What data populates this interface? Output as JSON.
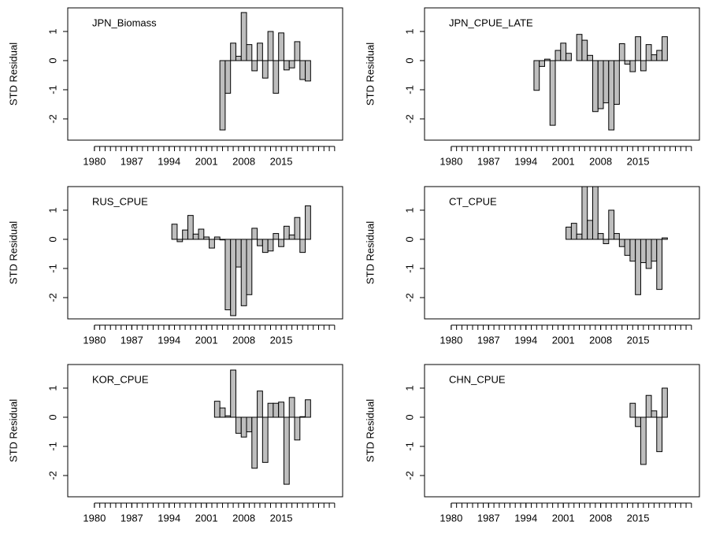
{
  "chart_data": [
    {
      "type": "bar",
      "title": "JPN_Biomass",
      "ylabel": "STD Residual",
      "color": "#bebebe",
      "x": [
        2004,
        2005,
        2006,
        2007,
        2008,
        2009,
        2010,
        2011,
        2012,
        2013,
        2014,
        2015,
        2016,
        2017,
        2018,
        2019,
        2020
      ],
      "values": [
        -2.38,
        -1.12,
        0.6,
        0.15,
        1.65,
        0.55,
        -0.35,
        0.6,
        -0.6,
        1.0,
        -1.12,
        0.95,
        -0.32,
        -0.25,
        0.65,
        -0.65,
        -0.7
      ],
      "xlim": [
        1975,
        2026.5
      ],
      "xticks": [
        1980,
        1987,
        1994,
        2001,
        2008,
        2015
      ],
      "xminorticks": [
        1980,
        1981,
        1982,
        1983,
        1984,
        1985,
        1986,
        1987,
        1988,
        1989,
        1990,
        1991,
        1992,
        1993,
        1994,
        1995,
        1996,
        1997,
        1998,
        1999,
        2000,
        2001,
        2002,
        2003,
        2004,
        2005,
        2006,
        2007,
        2008,
        2009,
        2010,
        2011,
        2012,
        2013,
        2014,
        2015,
        2016,
        2017,
        2018,
        2019,
        2020,
        2021,
        2022,
        2023,
        2024,
        2025
      ],
      "ylim": [
        -2.73,
        1.81
      ],
      "yticks": [
        -2,
        -1,
        0,
        1
      ]
    },
    {
      "type": "bar",
      "title": "JPN_CPUE_LATE",
      "ylabel": "STD Residual",
      "color": "#bebebe",
      "x": [
        1996,
        1997,
        1998,
        1999,
        2000,
        2001,
        2002,
        2003,
        2004,
        2005,
        2006,
        2007,
        2008,
        2009,
        2010,
        2011,
        2012,
        2013,
        2014,
        2015,
        2016,
        2017,
        2018,
        2019,
        2020
      ],
      "values": [
        -1.02,
        -0.2,
        0.05,
        -2.22,
        0.35,
        0.6,
        0.25,
        0.0,
        0.9,
        0.7,
        0.18,
        -1.75,
        -1.65,
        -1.45,
        -2.38,
        -1.5,
        0.58,
        -0.12,
        -0.38,
        0.82,
        -0.35,
        0.55,
        0.2,
        0.35,
        0.82
      ],
      "xlim": [
        1975,
        2026.5
      ],
      "xticks": [
        1980,
        1987,
        1994,
        2001,
        2008,
        2015
      ],
      "xminorticks": [
        1980,
        1981,
        1982,
        1983,
        1984,
        1985,
        1986,
        1987,
        1988,
        1989,
        1990,
        1991,
        1992,
        1993,
        1994,
        1995,
        1996,
        1997,
        1998,
        1999,
        2000,
        2001,
        2002,
        2003,
        2004,
        2005,
        2006,
        2007,
        2008,
        2009,
        2010,
        2011,
        2012,
        2013,
        2014,
        2015,
        2016,
        2017,
        2018,
        2019,
        2020,
        2021,
        2022,
        2023,
        2024,
        2025
      ],
      "ylim": [
        -2.73,
        1.81
      ],
      "yticks": [
        -2,
        -1,
        0,
        1
      ]
    },
    {
      "type": "bar",
      "title": "RUS_CPUE",
      "ylabel": "STD Residual",
      "color": "#bebebe",
      "x": [
        1995,
        1996,
        1997,
        1998,
        1999,
        2000,
        2001,
        2002,
        2003,
        2004,
        2005,
        2006,
        2007,
        2008,
        2009,
        2010,
        2011,
        2012,
        2013,
        2014,
        2015,
        2016,
        2017,
        2018,
        2019,
        2020
      ],
      "values": [
        0.52,
        -0.08,
        0.32,
        0.82,
        0.18,
        0.35,
        0.08,
        -0.3,
        0.08,
        -0.02,
        -2.42,
        -2.62,
        -0.95,
        -2.28,
        -1.9,
        0.38,
        -0.22,
        -0.45,
        -0.4,
        0.2,
        -0.25,
        0.45,
        0.15,
        0.75,
        -0.45,
        1.15
      ],
      "xlim": [
        1975,
        2026.5
      ],
      "xticks": [
        1980,
        1987,
        1994,
        2001,
        2008,
        2015
      ],
      "xminorticks": [
        1980,
        1981,
        1982,
        1983,
        1984,
        1985,
        1986,
        1987,
        1988,
        1989,
        1990,
        1991,
        1992,
        1993,
        1994,
        1995,
        1996,
        1997,
        1998,
        1999,
        2000,
        2001,
        2002,
        2003,
        2004,
        2005,
        2006,
        2007,
        2008,
        2009,
        2010,
        2011,
        2012,
        2013,
        2014,
        2015,
        2016,
        2017,
        2018,
        2019,
        2020,
        2021,
        2022,
        2023,
        2024,
        2025
      ],
      "ylim": [
        -2.73,
        1.81
      ],
      "yticks": [
        -2,
        -1,
        0,
        1
      ]
    },
    {
      "type": "bar",
      "title": "CT_CPUE",
      "ylabel": "STD Residual",
      "color": "#bebebe",
      "x": [
        2002,
        2003,
        2004,
        2005,
        2006,
        2007,
        2008,
        2009,
        2010,
        2011,
        2012,
        2013,
        2014,
        2015,
        2016,
        2017,
        2018,
        2019,
        2020
      ],
      "values": [
        0.42,
        0.55,
        0.18,
        2.2,
        0.65,
        2.0,
        0.2,
        -0.15,
        1.0,
        0.2,
        -0.25,
        -0.55,
        -0.75,
        -1.9,
        -0.8,
        -1.0,
        -0.75,
        -1.72,
        0.05
      ],
      "xlim": [
        1975,
        2026.5
      ],
      "xticks": [
        1980,
        1987,
        1994,
        2001,
        2008,
        2015
      ],
      "xminorticks": [
        1980,
        1981,
        1982,
        1983,
        1984,
        1985,
        1986,
        1987,
        1988,
        1989,
        1990,
        1991,
        1992,
        1993,
        1994,
        1995,
        1996,
        1997,
        1998,
        1999,
        2000,
        2001,
        2002,
        2003,
        2004,
        2005,
        2006,
        2007,
        2008,
        2009,
        2010,
        2011,
        2012,
        2013,
        2014,
        2015,
        2016,
        2017,
        2018,
        2019,
        2020,
        2021,
        2022,
        2023,
        2024,
        2025
      ],
      "ylim": [
        -2.73,
        1.81
      ],
      "yticks": [
        -2,
        -1,
        0,
        1
      ]
    },
    {
      "type": "bar",
      "title": "KOR_CPUE",
      "ylabel": "STD Residual",
      "color": "#bebebe",
      "x": [
        2003,
        2004,
        2005,
        2006,
        2007,
        2008,
        2009,
        2010,
        2011,
        2012,
        2013,
        2014,
        2015,
        2016,
        2017,
        2018,
        2019,
        2020
      ],
      "values": [
        0.55,
        0.32,
        0.05,
        1.62,
        -0.55,
        -0.68,
        -0.5,
        -1.75,
        0.9,
        -1.55,
        0.48,
        0.48,
        0.52,
        -2.3,
        0.68,
        -0.78,
        0.02,
        0.6
      ],
      "xlim": [
        1975,
        2026.5
      ],
      "xticks": [
        1980,
        1987,
        1994,
        2001,
        2008,
        2015
      ],
      "xminorticks": [
        1980,
        1981,
        1982,
        1983,
        1984,
        1985,
        1986,
        1987,
        1988,
        1989,
        1990,
        1991,
        1992,
        1993,
        1994,
        1995,
        1996,
        1997,
        1998,
        1999,
        2000,
        2001,
        2002,
        2003,
        2004,
        2005,
        2006,
        2007,
        2008,
        2009,
        2010,
        2011,
        2012,
        2013,
        2014,
        2015,
        2016,
        2017,
        2018,
        2019,
        2020,
        2021,
        2022,
        2023,
        2024,
        2025
      ],
      "ylim": [
        -2.73,
        1.81
      ],
      "yticks": [
        -2,
        -1,
        0,
        1
      ]
    },
    {
      "type": "bar",
      "title": "CHN_CPUE",
      "ylabel": "STD Residual",
      "color": "#bebebe",
      "x": [
        2014,
        2015,
        2016,
        2017,
        2018,
        2019,
        2020
      ],
      "values": [
        0.48,
        -0.32,
        -1.62,
        0.75,
        0.22,
        -1.18,
        1.0
      ],
      "xlim": [
        1975,
        2026.5
      ],
      "xticks": [
        1980,
        1987,
        1994,
        2001,
        2008,
        2015
      ],
      "xminorticks": [
        1980,
        1981,
        1982,
        1983,
        1984,
        1985,
        1986,
        1987,
        1988,
        1989,
        1990,
        1991,
        1992,
        1993,
        1994,
        1995,
        1996,
        1997,
        1998,
        1999,
        2000,
        2001,
        2002,
        2003,
        2004,
        2005,
        2006,
        2007,
        2008,
        2009,
        2010,
        2011,
        2012,
        2013,
        2014,
        2015,
        2016,
        2017,
        2018,
        2019,
        2020,
        2021,
        2022,
        2023,
        2024,
        2025
      ],
      "ylim": [
        -2.73,
        1.81
      ],
      "yticks": [
        -2,
        -1,
        0,
        1
      ]
    }
  ]
}
